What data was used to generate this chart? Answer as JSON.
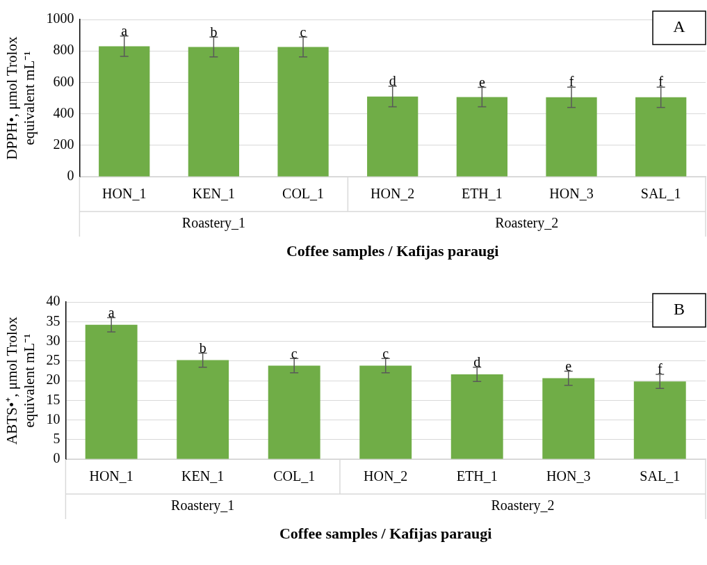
{
  "chart_data": [
    {
      "type": "bar",
      "ylabel": "DPPH•, μmol Trolox equivalent mL⁻¹",
      "xlabel": "Coffee samples / Kafijas paraugi",
      "categories": [
        "HON_1",
        "KEN_1",
        "COL_1",
        "HON_2",
        "ETH_1",
        "HON_3",
        "SAL_1"
      ],
      "values": [
        830,
        825,
        825,
        510,
        507,
        505,
        505
      ],
      "errors": [
        65,
        63,
        63,
        65,
        62,
        65,
        65
      ],
      "color": "#70ad47",
      "ylim": [
        0,
        1000
      ],
      "yticks": [
        0,
        200,
        400,
        600,
        800,
        1000
      ],
      "grid": "y",
      "annotations": [
        "A",
        "Roastery_1",
        "Roastery_2",
        {
          "text": "a",
          "x": "HON_1",
          "y": 895
        },
        {
          "text": "b",
          "x": "KEN_1",
          "y": 888
        },
        {
          "text": "c",
          "x": "COL_1",
          "y": 888
        },
        {
          "text": "d",
          "x": "HON_2",
          "y": 575
        },
        {
          "text": "e",
          "x": "ETH_1",
          "y": 569
        },
        {
          "text": "f",
          "x": "HON_3",
          "y": 570
        },
        {
          "text": "f",
          "x": "SAL_1",
          "y": 570
        }
      ]
    },
    {
      "type": "bar",
      "ylabel": "ABTS•⁺, μmol Trolox equivalent mL⁻¹",
      "xlabel": "Coffee samples / Kafijas paraugi",
      "categories": [
        "HON_1",
        "KEN_1",
        "COL_1",
        "HON_2",
        "ETH_1",
        "HON_3",
        "SAL_1"
      ],
      "values": [
        34.2,
        25.2,
        23.8,
        23.8,
        21.6,
        20.6,
        19.8
      ],
      "errors": [
        1.8,
        1.8,
        1.8,
        1.8,
        1.8,
        1.8,
        1.8
      ],
      "color": "#70ad47",
      "ylim": [
        0,
        40
      ],
      "yticks": [
        0,
        5,
        10,
        15,
        20,
        25,
        30,
        35,
        40
      ],
      "grid": "y",
      "annotations": [
        "B",
        "Roastery_1",
        "Roastery_2",
        {
          "text": "a",
          "x": "HON_1",
          "y": 36
        },
        {
          "text": "b",
          "x": "KEN_1",
          "y": 27
        },
        {
          "text": "c",
          "x": "COL_1",
          "y": 25.6
        },
        {
          "text": "c",
          "x": "HON_2",
          "y": 25.6
        },
        {
          "text": "d",
          "x": "ETH_1",
          "y": 23.4
        },
        {
          "text": "e",
          "x": "HON_3",
          "y": 22.4
        },
        {
          "text": "f",
          "x": "SAL_1",
          "y": 21.6
        }
      ]
    }
  ]
}
